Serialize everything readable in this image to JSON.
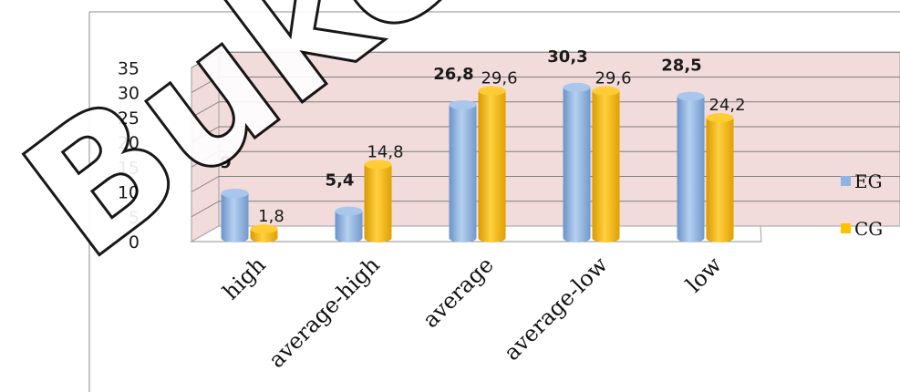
{
  "chart_data": {
    "type": "bar",
    "categories": [
      "high",
      "average-high",
      "average",
      "average-low",
      "low"
    ],
    "series": [
      {
        "name": "EG",
        "values": [
          9,
          5.4,
          26.8,
          30.3,
          28.5
        ],
        "labels": [
          "9",
          "5,4",
          "26,8",
          "30,3",
          "28,5"
        ],
        "color": "#8db4e2"
      },
      {
        "name": "CG",
        "values": [
          1.8,
          14.8,
          29.6,
          29.6,
          24.2
        ],
        "labels": [
          "1,8",
          "14,8",
          "29,6",
          "29,6",
          "24,2"
        ],
        "color": "#ffc000"
      }
    ],
    "yticks": [
      "0",
      "5",
      "10",
      "15",
      "20",
      "25",
      "30",
      "35"
    ],
    "ylim": [
      0,
      35
    ],
    "grid": true,
    "legend": "right",
    "plot_background": "#f2dcdb",
    "style": "3d-cylinder"
  },
  "watermark": "Buketov"
}
